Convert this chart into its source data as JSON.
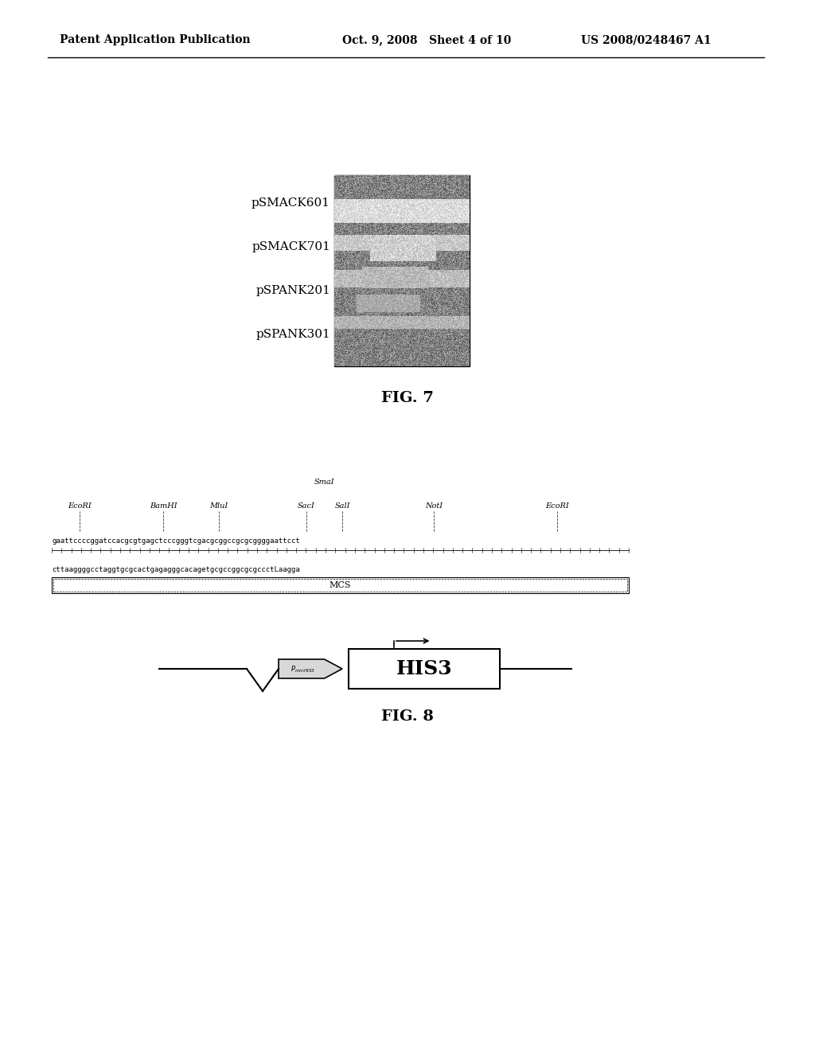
{
  "header_left": "Patent Application Publication",
  "header_mid": "Oct. 9, 2008   Sheet 4 of 10",
  "header_right": "US 2008/0248467 A1",
  "fig7_label": "FIG. 7",
  "fig8_label": "FIG. 8",
  "gel_labels": [
    "pSMACK601",
    "pSMACK701",
    "pSPANK201",
    "pSPANK301"
  ],
  "restriction_sites": [
    "EcoRI",
    "BamHI",
    "MluI",
    "SacI",
    "SalI",
    "NotI",
    "EcoRI"
  ],
  "smai_label": "SmaI",
  "seq_top": "gaattccccggatccacgcgtgagctcccgggtcgacgcggccgcgcggggaattcct",
  "seq_mid": "cttaaggggcctaggtgcgcactgagagggcacagetgcgccggcgcgccctLaagga",
  "mcs_label": "MCS",
  "his3_label": "HIS3",
  "pmin_label": "P_minHIS3",
  "background_color": "#ffffff",
  "text_color": "#000000",
  "gel_bg_color": "#808080"
}
